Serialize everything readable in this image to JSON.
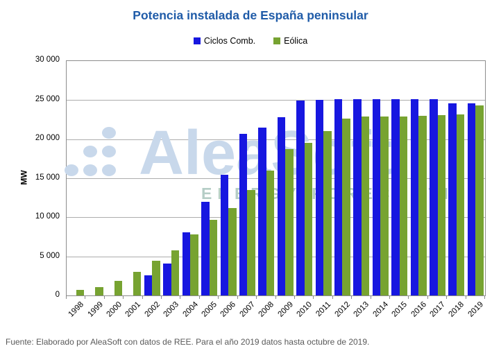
{
  "source_note": "Fuente: Elaborado por AleaSoft con datos de REE. Para el año 2019 datos hasta octubre de 2019.",
  "watermark": {
    "brand": "AleaSoft",
    "tagline": "ENERGY FORECASTING"
  },
  "colors": {
    "title": "#1F5BA8",
    "ciclos": "#1717E0",
    "eolica": "#77A331",
    "gridline": "#ACACAC",
    "watermark_blue": "#C8D8EB",
    "watermark_teal": "#B5CDC6",
    "source_text": "#595959"
  },
  "chart_data": {
    "type": "bar",
    "title": "Potencia instalada de España peninsular",
    "xlabel": "",
    "ylabel": "MW",
    "categories": [
      "1998",
      "1999",
      "2000",
      "2001",
      "2002",
      "2003",
      "2004",
      "2005",
      "2006",
      "2007",
      "2008",
      "2009",
      "2010",
      "2011",
      "2012",
      "2013",
      "2014",
      "2015",
      "2016",
      "2017",
      "2018",
      "2019"
    ],
    "series": [
      {
        "name": "Ciclos Comb.",
        "color": "#1717E0",
        "values": [
          null,
          null,
          null,
          null,
          2600,
          4100,
          8100,
          12000,
          15400,
          20700,
          21500,
          22800,
          24900,
          25000,
          25100,
          25100,
          25100,
          25100,
          25100,
          25100,
          24600,
          24600
        ]
      },
      {
        "name": "Eólica",
        "color": "#77A331",
        "values": [
          700,
          1100,
          1900,
          3000,
          4400,
          5800,
          7800,
          9700,
          11200,
          13500,
          16000,
          18700,
          19500,
          21000,
          22600,
          22900,
          22900,
          22900,
          23000,
          23100,
          23200,
          24300
        ]
      }
    ],
    "ylim": [
      0,
      30000
    ],
    "yticks": [
      0,
      5000,
      10000,
      15000,
      20000,
      25000,
      30000
    ],
    "ytick_labels": [
      "0",
      "5 000",
      "10 000",
      "15 000",
      "20 000",
      "25 000",
      "30 000"
    ],
    "grid": true,
    "legend_position": "top"
  }
}
